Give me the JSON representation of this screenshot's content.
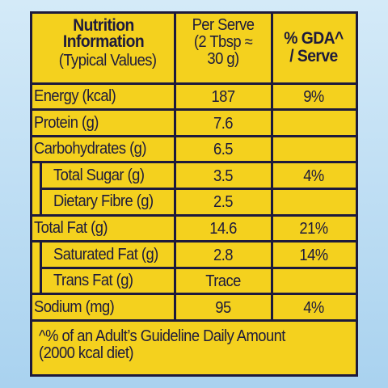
{
  "header": {
    "nutrient": [
      "Nutrition",
      "Information"
    ],
    "nutrient_note": "(Typical Values)",
    "per_serve": [
      "Per Serve",
      "(2 Tbsp ≈",
      "30 g)"
    ],
    "gda": [
      "% GDA^",
      "/ Serve"
    ]
  },
  "rows": [
    {
      "label": "Energy (kcal)",
      "per_serve": "187",
      "gda": "9%",
      "indent": false
    },
    {
      "label": "Protein (g)",
      "per_serve": "7.6",
      "gda": null,
      "indent": false
    },
    {
      "label": "Carbohydrates (g)",
      "per_serve": "6.5",
      "gda": null,
      "indent": false
    },
    {
      "label": "Total Sugar (g)",
      "per_serve": "3.5",
      "gda": "4%",
      "indent": true
    },
    {
      "label": "Dietary Fibre (g)",
      "per_serve": "2.5",
      "gda": null,
      "indent": true
    },
    {
      "label": "Total Fat (g)",
      "per_serve": "14.6",
      "gda": "21%",
      "indent": false
    },
    {
      "label": "Saturated Fat (g)",
      "per_serve": "2.8",
      "gda": "14%",
      "indent": true
    },
    {
      "label": "Trans Fat (g)",
      "per_serve": "Trace",
      "gda": null,
      "indent": true
    },
    {
      "label": "Sodium (mg)",
      "per_serve": "95",
      "gda": "4%",
      "indent": false
    }
  ],
  "footnote": [
    "^% of an Adult’s Guideline Daily Amount",
    "(2000 kcal diet)"
  ]
}
